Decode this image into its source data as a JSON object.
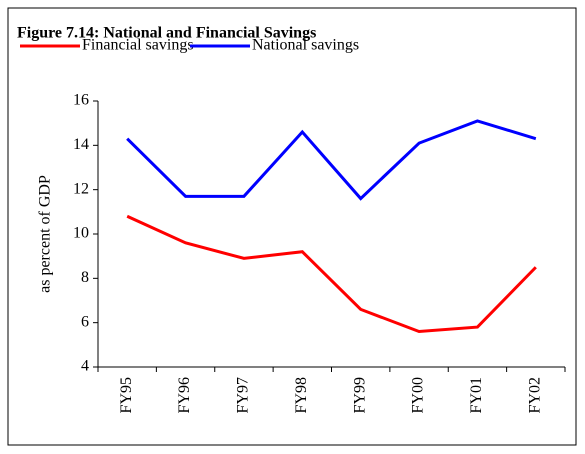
{
  "chart_data": {
    "type": "line",
    "title": "Figure 7.14: National and Financial Savings",
    "y_label": "as percent of GDP",
    "categories": [
      "FY95",
      "FY96",
      "FY97",
      "FY98",
      "FY99",
      "FY00",
      "FY01",
      "FY02"
    ],
    "series": [
      {
        "name": "Financial savings",
        "color": "#ff0000",
        "values": [
          10.8,
          9.6,
          8.9,
          9.2,
          6.6,
          5.6,
          5.8,
          8.5
        ]
      },
      {
        "name": "National savings",
        "color": "#0000ff",
        "values": [
          14.3,
          11.7,
          11.7,
          14.6,
          11.6,
          14.1,
          15.1,
          14.3
        ]
      }
    ],
    "ylim": [
      4,
      16
    ],
    "yticks": [
      4,
      6,
      8,
      10,
      12,
      14,
      16
    ],
    "grid": false
  }
}
